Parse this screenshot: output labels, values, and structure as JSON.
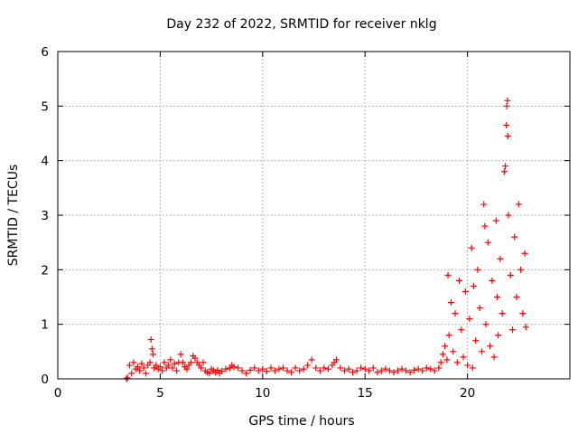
{
  "chart_data": {
    "type": "scatter",
    "title": "Day 232 of 2022, SRMTID for receiver nklg",
    "xlabel": "GPS time / hours",
    "ylabel": "SRMTID / TECUs",
    "xlim": [
      0,
      25
    ],
    "ylim": [
      0,
      6
    ],
    "x_ticks": [
      0,
      5,
      10,
      15,
      20
    ],
    "y_ticks": [
      0,
      1,
      2,
      3,
      4,
      5,
      6
    ],
    "grid": true,
    "marker": "+",
    "colors": {
      "series": "#ff0000",
      "grid": "#a0a0a0",
      "axes": "#000000"
    },
    "series": [
      {
        "name": "SRMTID",
        "points": [
          [
            3.35,
            0.0
          ],
          [
            3.4,
            0.02
          ],
          [
            3.5,
            0.25
          ],
          [
            3.6,
            0.1
          ],
          [
            3.7,
            0.3
          ],
          [
            3.8,
            0.18
          ],
          [
            3.9,
            0.22
          ],
          [
            4.0,
            0.15
          ],
          [
            4.1,
            0.28
          ],
          [
            4.2,
            0.2
          ],
          [
            4.3,
            0.1
          ],
          [
            4.4,
            0.25
          ],
          [
            4.5,
            0.3
          ],
          [
            4.55,
            0.72
          ],
          [
            4.6,
            0.55
          ],
          [
            4.65,
            0.45
          ],
          [
            4.7,
            0.2
          ],
          [
            4.8,
            0.25
          ],
          [
            4.9,
            0.18
          ],
          [
            5.0,
            0.22
          ],
          [
            5.1,
            0.15
          ],
          [
            5.2,
            0.3
          ],
          [
            5.3,
            0.2
          ],
          [
            5.4,
            0.25
          ],
          [
            5.5,
            0.35
          ],
          [
            5.6,
            0.2
          ],
          [
            5.7,
            0.28
          ],
          [
            5.8,
            0.15
          ],
          [
            5.9,
            0.3
          ],
          [
            6.0,
            0.45
          ],
          [
            6.1,
            0.3
          ],
          [
            6.2,
            0.22
          ],
          [
            6.3,
            0.18
          ],
          [
            6.4,
            0.25
          ],
          [
            6.5,
            0.3
          ],
          [
            6.6,
            0.42
          ],
          [
            6.7,
            0.38
          ],
          [
            6.8,
            0.3
          ],
          [
            6.9,
            0.25
          ],
          [
            7.0,
            0.2
          ],
          [
            7.1,
            0.3
          ],
          [
            7.2,
            0.15
          ],
          [
            7.3,
            0.12
          ],
          [
            7.4,
            0.1
          ],
          [
            7.5,
            0.18
          ],
          [
            7.6,
            0.15
          ],
          [
            7.7,
            0.12
          ],
          [
            7.8,
            0.16
          ],
          [
            7.9,
            0.1
          ],
          [
            8.0,
            0.14
          ],
          [
            8.2,
            0.18
          ],
          [
            8.4,
            0.2
          ],
          [
            8.5,
            0.25
          ],
          [
            8.6,
            0.22
          ],
          [
            8.8,
            0.2
          ],
          [
            9.0,
            0.15
          ],
          [
            9.2,
            0.1
          ],
          [
            9.4,
            0.16
          ],
          [
            9.6,
            0.2
          ],
          [
            9.8,
            0.15
          ],
          [
            10.0,
            0.18
          ],
          [
            10.2,
            0.14
          ],
          [
            10.4,
            0.2
          ],
          [
            10.6,
            0.15
          ],
          [
            10.8,
            0.18
          ],
          [
            11.0,
            0.2
          ],
          [
            11.2,
            0.15
          ],
          [
            11.4,
            0.12
          ],
          [
            11.6,
            0.2
          ],
          [
            11.8,
            0.15
          ],
          [
            12.0,
            0.18
          ],
          [
            12.2,
            0.25
          ],
          [
            12.4,
            0.35
          ],
          [
            12.6,
            0.2
          ],
          [
            12.8,
            0.15
          ],
          [
            13.0,
            0.2
          ],
          [
            13.2,
            0.18
          ],
          [
            13.4,
            0.25
          ],
          [
            13.5,
            0.3
          ],
          [
            13.6,
            0.35
          ],
          [
            13.8,
            0.2
          ],
          [
            14.0,
            0.15
          ],
          [
            14.2,
            0.18
          ],
          [
            14.4,
            0.12
          ],
          [
            14.6,
            0.15
          ],
          [
            14.8,
            0.2
          ],
          [
            15.0,
            0.18
          ],
          [
            15.2,
            0.15
          ],
          [
            15.4,
            0.2
          ],
          [
            15.6,
            0.12
          ],
          [
            15.8,
            0.15
          ],
          [
            16.0,
            0.18
          ],
          [
            16.2,
            0.15
          ],
          [
            16.4,
            0.12
          ],
          [
            16.6,
            0.15
          ],
          [
            16.8,
            0.18
          ],
          [
            17.0,
            0.15
          ],
          [
            17.2,
            0.12
          ],
          [
            17.4,
            0.16
          ],
          [
            17.6,
            0.18
          ],
          [
            17.8,
            0.15
          ],
          [
            18.0,
            0.2
          ],
          [
            18.2,
            0.18
          ],
          [
            18.4,
            0.15
          ],
          [
            18.6,
            0.2
          ],
          [
            18.7,
            0.3
          ],
          [
            18.8,
            0.45
          ],
          [
            18.9,
            0.6
          ],
          [
            19.0,
            0.35
          ],
          [
            19.05,
            1.9
          ],
          [
            19.1,
            0.8
          ],
          [
            19.2,
            1.4
          ],
          [
            19.3,
            0.5
          ],
          [
            19.4,
            1.2
          ],
          [
            19.5,
            0.3
          ],
          [
            19.6,
            1.8
          ],
          [
            19.7,
            0.9
          ],
          [
            19.8,
            0.4
          ],
          [
            19.9,
            1.6
          ],
          [
            20.0,
            0.25
          ],
          [
            20.1,
            1.1
          ],
          [
            20.2,
            2.4
          ],
          [
            20.25,
            0.2
          ],
          [
            20.3,
            1.7
          ],
          [
            20.4,
            0.7
          ],
          [
            20.5,
            2.0
          ],
          [
            20.6,
            1.3
          ],
          [
            20.7,
            0.5
          ],
          [
            20.8,
            3.2
          ],
          [
            20.85,
            2.8
          ],
          [
            20.9,
            1.0
          ],
          [
            21.0,
            2.5
          ],
          [
            21.1,
            0.6
          ],
          [
            21.2,
            1.8
          ],
          [
            21.3,
            0.4
          ],
          [
            21.4,
            2.9
          ],
          [
            21.45,
            1.5
          ],
          [
            21.5,
            0.8
          ],
          [
            21.6,
            2.2
          ],
          [
            21.7,
            1.2
          ],
          [
            21.8,
            3.8
          ],
          [
            21.85,
            3.9
          ],
          [
            21.9,
            4.65
          ],
          [
            21.92,
            5.0
          ],
          [
            21.95,
            5.1
          ],
          [
            21.97,
            4.45
          ],
          [
            22.0,
            3.0
          ],
          [
            22.1,
            1.9
          ],
          [
            22.2,
            0.9
          ],
          [
            22.3,
            2.6
          ],
          [
            22.4,
            1.5
          ],
          [
            22.5,
            3.2
          ],
          [
            22.6,
            2.0
          ],
          [
            22.7,
            1.2
          ],
          [
            22.8,
            2.3
          ],
          [
            22.85,
            0.95
          ]
        ]
      }
    ]
  }
}
